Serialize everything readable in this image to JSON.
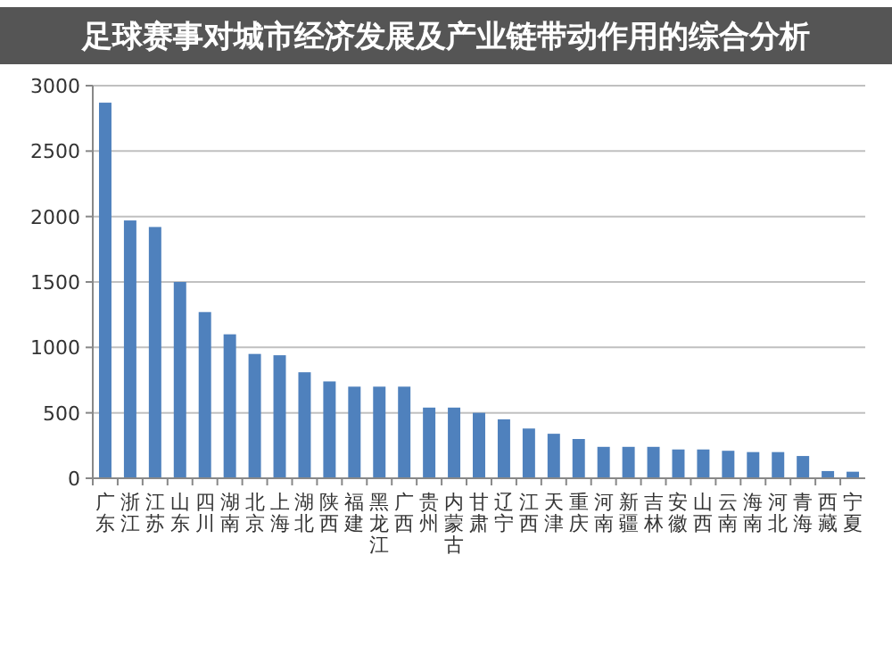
{
  "chart_data": {
    "type": "bar",
    "title": "足球赛事对城市经济发展及产业链带动作用的综合分析",
    "categories": [
      "广东",
      "浙江",
      "江苏",
      "山东",
      "四川",
      "湖南",
      "北京",
      "上海",
      "湖北",
      "陕西",
      "福建",
      "黑龙江",
      "广西",
      "贵州",
      "内蒙古",
      "甘肃",
      "辽宁",
      "江西",
      "天津",
      "重庆",
      "河南",
      "新疆",
      "吉林",
      "安徽",
      "山西",
      "云南",
      "海南",
      "河北",
      "青海",
      "西藏",
      "宁夏"
    ],
    "values": [
      2870,
      1970,
      1920,
      1500,
      1270,
      1100,
      950,
      940,
      810,
      740,
      700,
      700,
      700,
      540,
      540,
      500,
      450,
      380,
      340,
      300,
      240,
      240,
      240,
      220,
      220,
      210,
      200,
      200,
      170,
      55,
      50
    ],
    "color": "#4f81bd",
    "ylim": [
      0,
      3000
    ],
    "yticks": [
      0,
      500,
      1000,
      1500,
      2000,
      2500,
      3000
    ],
    "grid": "y"
  }
}
